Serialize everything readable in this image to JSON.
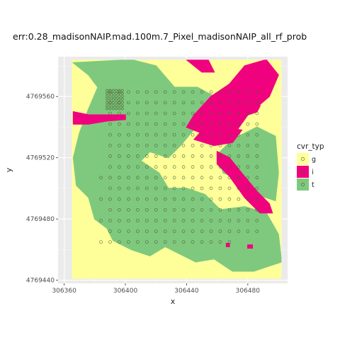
{
  "chart_data": {
    "type": "heatmap",
    "title": "err:0.28_madisonNAIP.mad.100m.7_Pixel_madisonNAIP_all_rf_prob",
    "xlabel": "x",
    "ylabel": "y",
    "xlim": [
      306356,
      306506
    ],
    "ylim": [
      4769438,
      4769586
    ],
    "x_ticks": [
      306360,
      306400,
      306440,
      306480
    ],
    "y_ticks": [
      4769440,
      4769480,
      4769520,
      4769560
    ],
    "grid": true,
    "legend": {
      "title": "cvr_typ",
      "placement": "right",
      "entries": [
        {
          "label": "g",
          "color": "#ffff99"
        },
        {
          "label": "i",
          "color": "#f0027f"
        },
        {
          "label": "t",
          "color": "#7fc97f"
        }
      ]
    },
    "raster_extent": {
      "x": [
        306365,
        306502
      ],
      "y": [
        4769441,
        4769584
      ]
    },
    "background_class": "g",
    "regions": [
      {
        "class": "t",
        "polygon": [
          [
            306366,
            4769582
          ],
          [
            306404,
            4769584
          ],
          [
            306420,
            4769580
          ],
          [
            306432,
            4769566
          ],
          [
            306447,
            4769566
          ],
          [
            306458,
            4769560
          ],
          [
            306470,
            4769556
          ],
          [
            306470,
            4769540
          ],
          [
            306460,
            4769534
          ],
          [
            306446,
            4769540
          ],
          [
            306436,
            4769528
          ],
          [
            306428,
            4769520
          ],
          [
            306416,
            4769524
          ],
          [
            306410,
            4769518
          ],
          [
            306422,
            4769510
          ],
          [
            306428,
            4769500
          ],
          [
            306440,
            4769500
          ],
          [
            306452,
            4769496
          ],
          [
            306462,
            4769486
          ],
          [
            306478,
            4769488
          ],
          [
            306492,
            4769484
          ],
          [
            306500,
            4769470
          ],
          [
            306502,
            4769452
          ],
          [
            306484,
            4769446
          ],
          [
            306470,
            4769446
          ],
          [
            306458,
            4769454
          ],
          [
            306446,
            4769452
          ],
          [
            306434,
            4769458
          ],
          [
            306426,
            4769462
          ],
          [
            306416,
            4769456
          ],
          [
            306404,
            4769460
          ],
          [
            306392,
            4769466
          ],
          [
            306388,
            4769474
          ],
          [
            306380,
            4769480
          ],
          [
            306376,
            4769494
          ],
          [
            306368,
            4769502
          ],
          [
            306366,
            4769520
          ],
          [
            306370,
            4769536
          ],
          [
            306376,
            4769552
          ],
          [
            306382,
            4769566
          ],
          [
            306376,
            4769574
          ]
        ]
      },
      {
        "class": "t",
        "polygon": [
          [
            306470,
            4769532
          ],
          [
            306486,
            4769540
          ],
          [
            306498,
            4769534
          ],
          [
            306500,
            4769510
          ],
          [
            306498,
            4769492
          ],
          [
            306486,
            4769496
          ],
          [
            306476,
            4769506
          ],
          [
            306464,
            4769510
          ],
          [
            306460,
            4769522
          ]
        ]
      },
      {
        "class": "i",
        "polygon": [
          [
            306445,
            4769548
          ],
          [
            306456,
            4769560
          ],
          [
            306468,
            4769568
          ],
          [
            306478,
            4769580
          ],
          [
            306492,
            4769584
          ],
          [
            306500,
            4769574
          ],
          [
            306494,
            4769560
          ],
          [
            306480,
            4769548
          ],
          [
            306470,
            4769534
          ],
          [
            306460,
            4769530
          ],
          [
            306450,
            4769536
          ],
          [
            306440,
            4769540
          ]
        ]
      },
      {
        "class": "i",
        "polygon": [
          [
            306445,
            4769532
          ],
          [
            306458,
            4769528
          ],
          [
            306470,
            4769530
          ],
          [
            306476,
            4769538
          ],
          [
            306466,
            4769540
          ],
          [
            306452,
            4769540
          ]
        ]
      },
      {
        "class": "i",
        "polygon": [
          [
            306460,
            4769524
          ],
          [
            306468,
            4769520
          ],
          [
            306476,
            4769510
          ],
          [
            306486,
            4769498
          ],
          [
            306494,
            4769490
          ],
          [
            306496,
            4769484
          ],
          [
            306488,
            4769484
          ],
          [
            306478,
            4769494
          ],
          [
            306468,
            4769508
          ],
          [
            306460,
            4769516
          ]
        ]
      },
      {
        "class": "i",
        "polygon": [
          [
            306366,
            4769550
          ],
          [
            306376,
            4769548
          ],
          [
            306388,
            4769548
          ],
          [
            306400,
            4769548
          ],
          [
            306400,
            4769545
          ],
          [
            306388,
            4769544
          ],
          [
            306376,
            4769542
          ],
          [
            306366,
            4769542
          ]
        ]
      },
      {
        "class": "i",
        "polygon": [
          [
            306440,
            4769584
          ],
          [
            306454,
            4769584
          ],
          [
            306458,
            4769576
          ],
          [
            306450,
            4769576
          ]
        ]
      },
      {
        "class": "i",
        "polygon": [
          [
            306473,
            4769550
          ],
          [
            306480,
            4769548
          ],
          [
            306486,
            4769550
          ],
          [
            306488,
            4769554
          ],
          [
            306482,
            4769556
          ],
          [
            306476,
            4769554
          ]
        ]
      },
      {
        "class": "i",
        "polygon": [
          [
            306480,
            4769463
          ],
          [
            306483,
            4769463
          ],
          [
            306483,
            4769461
          ],
          [
            306480,
            4769461
          ]
        ]
      },
      {
        "class": "i",
        "polygon": [
          [
            306466,
            4769464
          ],
          [
            306468,
            4769464
          ],
          [
            306468,
            4769462
          ],
          [
            306466,
            4769462
          ]
        ]
      }
    ],
    "points": {
      "grid_x": [
        306390,
        306396,
        306402,
        306408,
        306414,
        306420,
        306426,
        306432,
        306438,
        306444,
        306450,
        306456,
        306462,
        306468,
        306474,
        306480,
        306486
      ],
      "grid_y": [
        4769563,
        4769556,
        4769549,
        4769542,
        4769535,
        4769528,
        4769521,
        4769514,
        4769507,
        4769500,
        4769493,
        4769486,
        4769479,
        4769472,
        4769465
      ],
      "extra_left_x": [
        306384
      ],
      "inner_grid": {
        "x": [
          306388,
          306398
        ],
        "y": [
          4769552,
          4769564
        ],
        "step": 2
      }
    }
  }
}
